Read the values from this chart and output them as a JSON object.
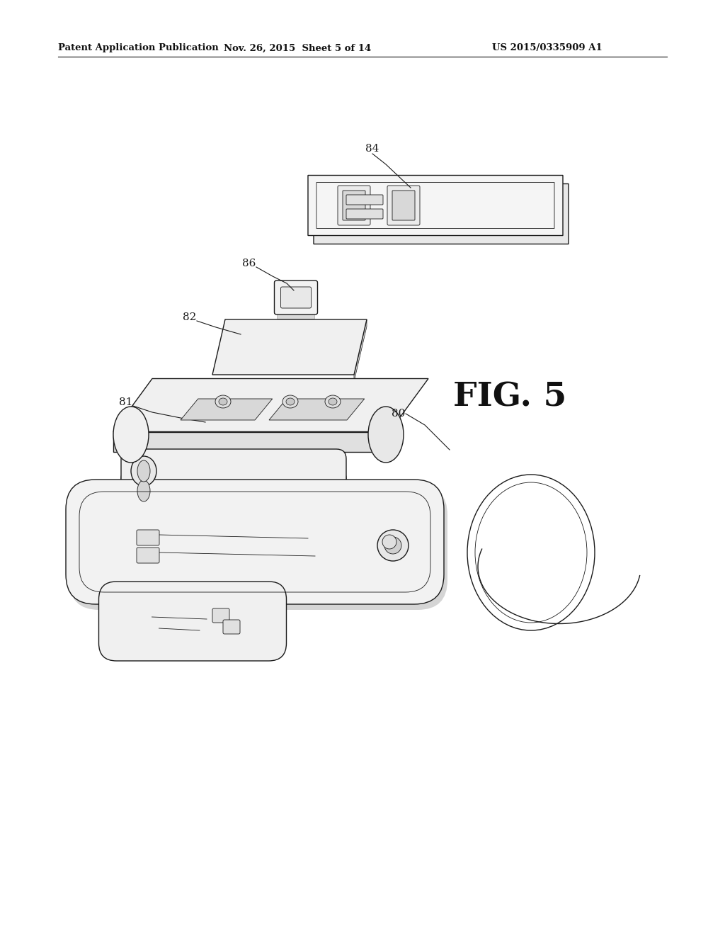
{
  "bg_color": "#ffffff",
  "line_color": "#1a1a1a",
  "header_left": "Patent Application Publication",
  "header_center": "Nov. 26, 2015  Sheet 5 of 14",
  "header_right": "US 2015/0335909 A1",
  "fig_label": "FIG. 5",
  "lw": 1.0,
  "lw_thin": 0.6,
  "lw_header": 0.7
}
